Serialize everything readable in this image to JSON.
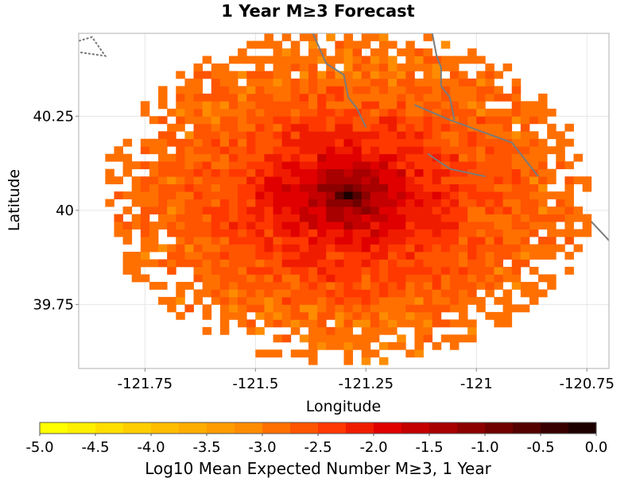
{
  "chart_data": {
    "type": "heatmap",
    "title": "1 Year M≥3 Forecast",
    "xlabel": "Longitude",
    "ylabel": "Latitude",
    "xlim": [
      -121.9,
      -120.7
    ],
    "ylim": [
      39.58,
      40.47
    ],
    "x_ticks": [
      {
        "value": -121.75,
        "label": "-121.75"
      },
      {
        "value": -121.5,
        "label": "-121.5"
      },
      {
        "value": -121.25,
        "label": "-121.25"
      },
      {
        "value": -121.0,
        "label": "-121"
      },
      {
        "value": -120.75,
        "label": "-120.75"
      }
    ],
    "y_ticks": [
      {
        "value": 40.25,
        "label": "40.25"
      },
      {
        "value": 40.0,
        "label": "40"
      },
      {
        "value": 39.75,
        "label": "39.75"
      }
    ],
    "grid": true,
    "field": {
      "center_lon": -121.29,
      "center_lat": 40.04,
      "cell_size_deg": 0.02,
      "peak_log10": -0.1,
      "extent_lon": 0.56,
      "extent_lat": 0.45,
      "min_log10": -5.0
    },
    "faults": [
      [
        [
          -121.37,
          40.47
        ],
        [
          -121.34,
          40.39
        ],
        [
          -121.3,
          40.36
        ],
        [
          -121.29,
          40.3
        ],
        [
          -121.27,
          40.27
        ],
        [
          -121.25,
          40.22
        ]
      ],
      [
        [
          -121.1,
          40.47
        ],
        [
          -121.09,
          40.41
        ],
        [
          -121.08,
          40.38
        ],
        [
          -121.08,
          40.33
        ],
        [
          -121.06,
          40.3
        ],
        [
          -121.05,
          40.24
        ]
      ],
      [
        [
          -121.14,
          40.28
        ],
        [
          -121.06,
          40.24
        ],
        [
          -120.99,
          40.21
        ],
        [
          -120.92,
          40.18
        ],
        [
          -120.86,
          40.09
        ]
      ],
      [
        [
          -121.11,
          40.15
        ],
        [
          -121.06,
          40.11
        ],
        [
          -120.98,
          40.09
        ]
      ],
      [
        [
          -120.74,
          39.97
        ],
        [
          -120.7,
          39.92
        ]
      ],
      [
        [
          -121.9,
          40.45
        ],
        [
          -121.87,
          40.46
        ],
        [
          -121.84,
          40.41
        ],
        [
          -121.9,
          40.42
        ]
      ]
    ],
    "colorbar": {
      "label": "Log10 Mean Expected Number M≥3, 1 Year",
      "min": -5.0,
      "max": 0.0,
      "ticks": [
        "-5.0",
        "-4.5",
        "-4.0",
        "-3.5",
        "-3.0",
        "-2.5",
        "-2.0",
        "-1.5",
        "-1.0",
        "-0.5",
        "0.0"
      ],
      "colors": [
        "#ffff00",
        "#ffef00",
        "#ffde00",
        "#ffce00",
        "#ffbd00",
        "#ffad00",
        "#ff9c00",
        "#ff8c00",
        "#ff7000",
        "#ff5400",
        "#ff3800",
        "#f01c00",
        "#e00000",
        "#c40000",
        "#a80000",
        "#8c0000",
        "#700000",
        "#540000",
        "#380000",
        "#1c0000"
      ]
    }
  }
}
